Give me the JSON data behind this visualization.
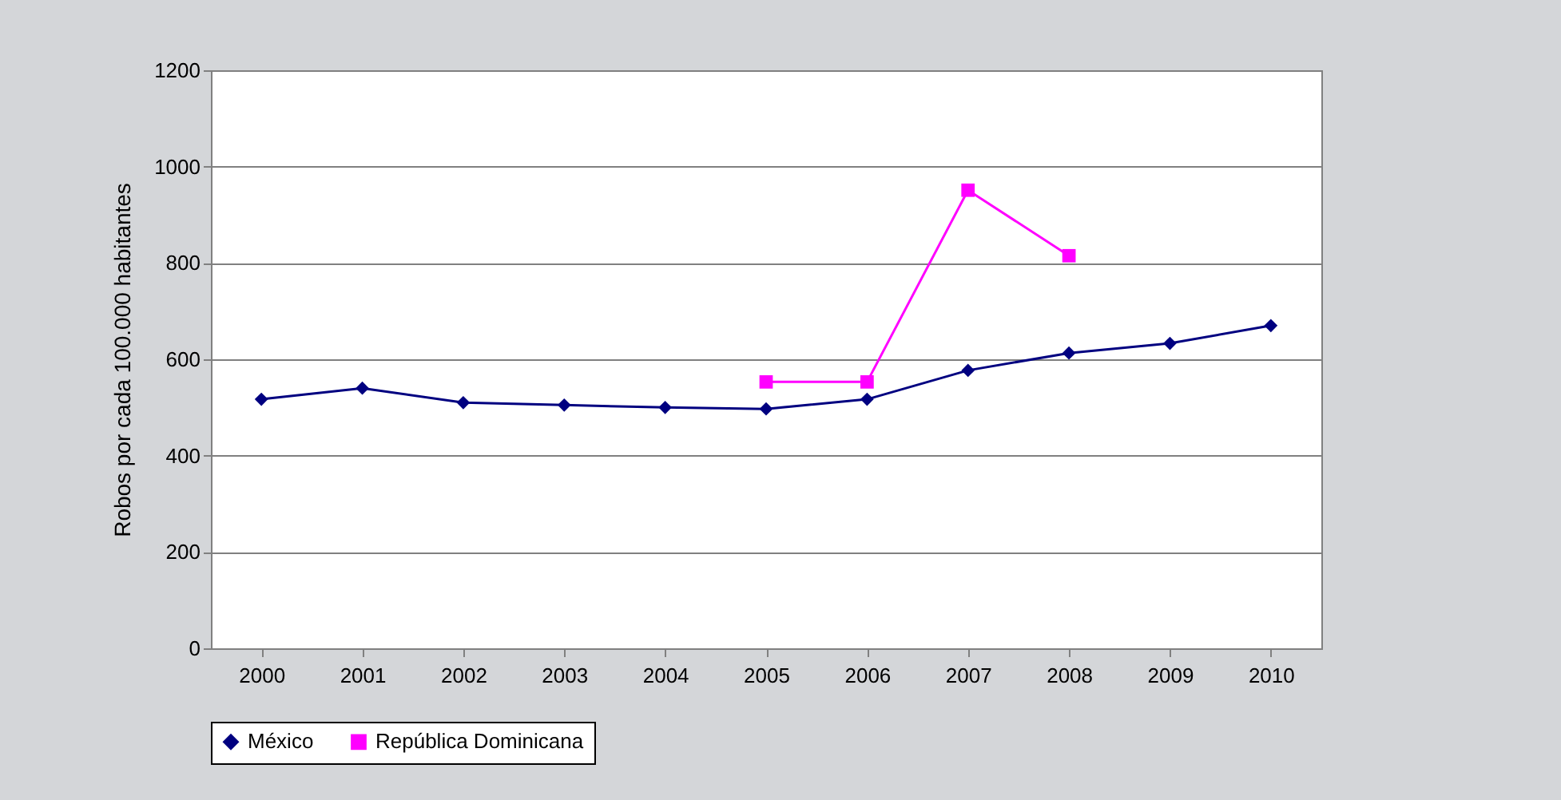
{
  "chart_data": {
    "type": "line",
    "ylabel": "Robos por cada 100.000 habitantes",
    "categories": [
      "2000",
      "2001",
      "2002",
      "2003",
      "2004",
      "2005",
      "2006",
      "2007",
      "2008",
      "2009",
      "2010"
    ],
    "series": [
      {
        "name": "México",
        "color": "#000080",
        "marker": "diamond",
        "values": [
          517,
          540,
          510,
          505,
          500,
          497,
          517,
          577,
          613,
          633,
          670
        ]
      },
      {
        "name": "República Dominicana",
        "color": "#ff00ff",
        "marker": "square",
        "values": [
          null,
          null,
          null,
          null,
          null,
          553,
          553,
          951,
          815,
          null,
          null
        ]
      }
    ],
    "ylim": [
      0,
      1200
    ],
    "yticks": [
      0,
      200,
      400,
      600,
      800,
      1000,
      1200
    ],
    "grid": "y",
    "legend": "bottom"
  }
}
